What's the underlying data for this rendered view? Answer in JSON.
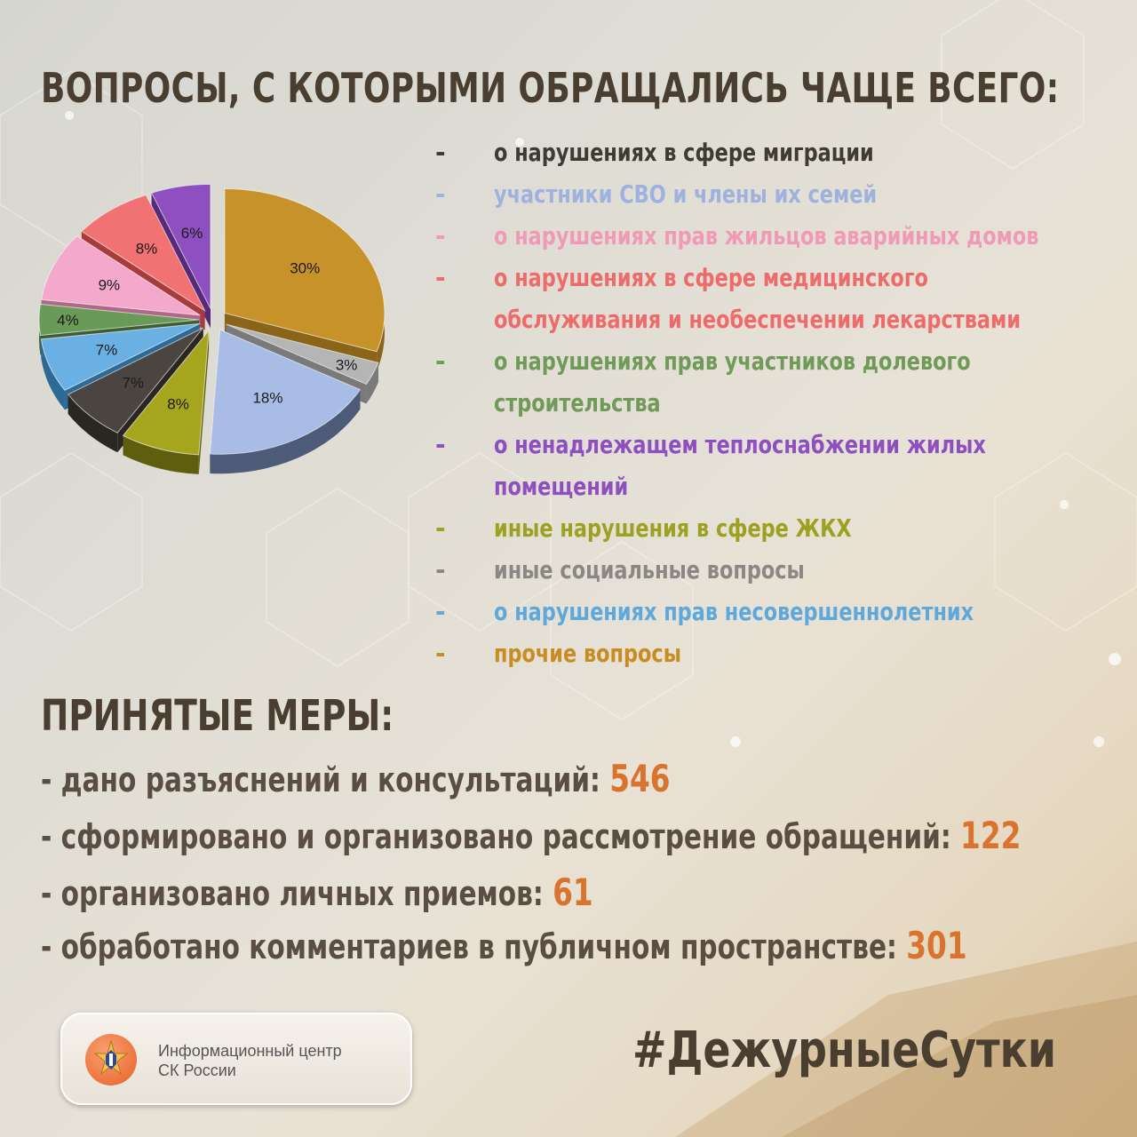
{
  "title": "ВОПРОСЫ, С КОТОРЫМИ ОБРАЩАЛИСЬ ЧАЩЕ ВСЕГО:",
  "legend": [
    {
      "dash": "-",
      "text": "о нарушениях в сфере миграции",
      "color": "#3e3a34"
    },
    {
      "dash": "-",
      "text": "участники СВО и члены их семей",
      "color": "#9fb2df"
    },
    {
      "dash": "-",
      "text": "о нарушениях прав жильцов аварийных домов",
      "color": "#f09ab8"
    },
    {
      "dash": "-",
      "text": "о нарушениях в сфере медицинского",
      "color": "#ee6b6b"
    },
    {
      "dash": "",
      "text": "обслуживания и необеспечении лекарствами",
      "color": "#ee6b6b"
    },
    {
      "dash": "-",
      "text": "о нарушениях прав участников долевого",
      "color": "#6f9a58"
    },
    {
      "dash": "",
      "text": "строительства",
      "color": "#6f9a58"
    },
    {
      "dash": "-",
      "text": "о ненадлежащем теплоснабжении жилых",
      "color": "#8e4fc0"
    },
    {
      "dash": "",
      "text": "помещений",
      "color": "#8e4fc0"
    },
    {
      "dash": "-",
      "text": "иные нарушения в сфере ЖКХ",
      "color": "#9ea022"
    },
    {
      "dash": "-",
      "text": "иные социальные вопросы",
      "color": "#8a8784"
    },
    {
      "dash": "-",
      "text": "о нарушениях прав несовершеннолетних",
      "color": "#5ea8dc"
    },
    {
      "dash": "-",
      "text": "прочие вопросы",
      "color": "#c98c22"
    }
  ],
  "chart_data": {
    "type": "pie",
    "slices": [
      {
        "label": "30%",
        "value": 30,
        "color": "#c8922a",
        "side": "#8a6418"
      },
      {
        "label": "3%",
        "value": 3,
        "color": "#b5b5b5",
        "side": "#7a7a7a"
      },
      {
        "label": "18%",
        "value": 18,
        "color": "#a8bce6",
        "side": "#4d5a78"
      },
      {
        "label": "8%",
        "value": 8,
        "color": "#a6a61e",
        "side": "#5e5e0e"
      },
      {
        "label": "7%",
        "value": 7,
        "color": "#4a4540",
        "side": "#2a2622"
      },
      {
        "label": "7%",
        "value": 7,
        "color": "#6ab0e2",
        "side": "#2e6a96"
      },
      {
        "label": "4%",
        "value": 4,
        "color": "#6a9a58",
        "side": "#3e5e32"
      },
      {
        "label": "9%",
        "value": 9,
        "color": "#f4a8cc",
        "side": "#b06888"
      },
      {
        "label": "8%",
        "value": 8,
        "color": "#f07272",
        "side": "#a83c3c"
      },
      {
        "label": "6%",
        "value": 6,
        "color": "#8e50c0",
        "side": "#552a78"
      }
    ]
  },
  "measures": {
    "title": "ПРИНЯТЫЕ МЕРЫ:",
    "items": [
      {
        "text": "- дано разъяснений и консультаций: ",
        "value": "546"
      },
      {
        "text": "- сформировано и организовано рассмотрение обращений: ",
        "value": "122"
      },
      {
        "text": "- организовано личных приемов: ",
        "value": "61"
      },
      {
        "text": "- обработано комментариев в публичном пространстве: ",
        "value": "301"
      }
    ]
  },
  "footer": {
    "org": "Информационный центр\nСК России",
    "hashtag": "#ДежурныеСутки"
  }
}
